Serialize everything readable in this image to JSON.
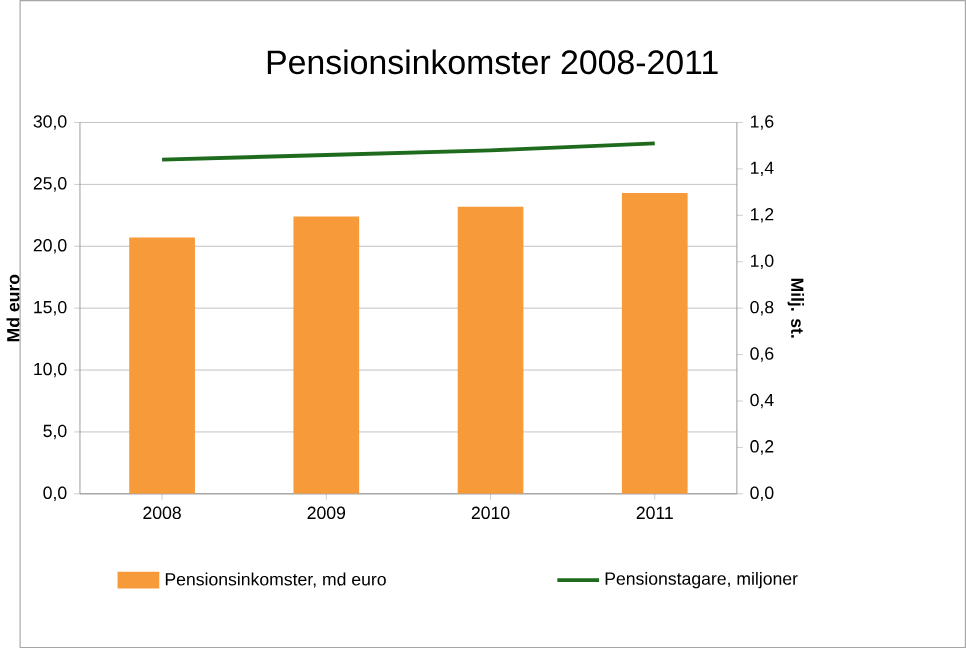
{
  "chart_data": {
    "type": "bar",
    "title": "Pensionsinkomster 2008-2011",
    "ylabel": "Md euro",
    "y2label": "Milj. st.",
    "categories": [
      "2008",
      "2009",
      "2010",
      "2011"
    ],
    "series": [
      {
        "name": "Pensionsinkomster, md euro",
        "color": "#f79a3a",
        "values": [
          20.7,
          22.4,
          23.2,
          24.3
        ]
      },
      {
        "name": "Pensionstagare, miljoner",
        "type": "line",
        "axis": "y2",
        "color": "#1e6b1e",
        "values": [
          1.44,
          1.46,
          1.48,
          1.51
        ]
      }
    ],
    "ylim": [
      0,
      30
    ],
    "yticks": [
      {
        "value": 0,
        "label": "0,0"
      },
      {
        "value": 5,
        "label": "5,0"
      },
      {
        "value": 10,
        "label": "10,0"
      },
      {
        "value": 15,
        "label": "15,0"
      },
      {
        "value": 20,
        "label": "20,0"
      },
      {
        "value": 25,
        "label": "25,0"
      },
      {
        "value": 30,
        "label": "30,0"
      }
    ],
    "y2lim": [
      0,
      1.6
    ],
    "y2ticks": [
      {
        "value": 0,
        "label": "0,0"
      },
      {
        "value": 0.2,
        "label": "0,2"
      },
      {
        "value": 0.4,
        "label": "0,4"
      },
      {
        "value": 0.6,
        "label": "0,6"
      },
      {
        "value": 0.8,
        "label": "0,8"
      },
      {
        "value": 1.0,
        "label": "1,0"
      },
      {
        "value": 1.2,
        "label": "1,2"
      },
      {
        "value": 1.4,
        "label": "1,4"
      },
      {
        "value": 1.6,
        "label": "1,6"
      }
    ],
    "grid": "y",
    "legend": "bottom"
  }
}
